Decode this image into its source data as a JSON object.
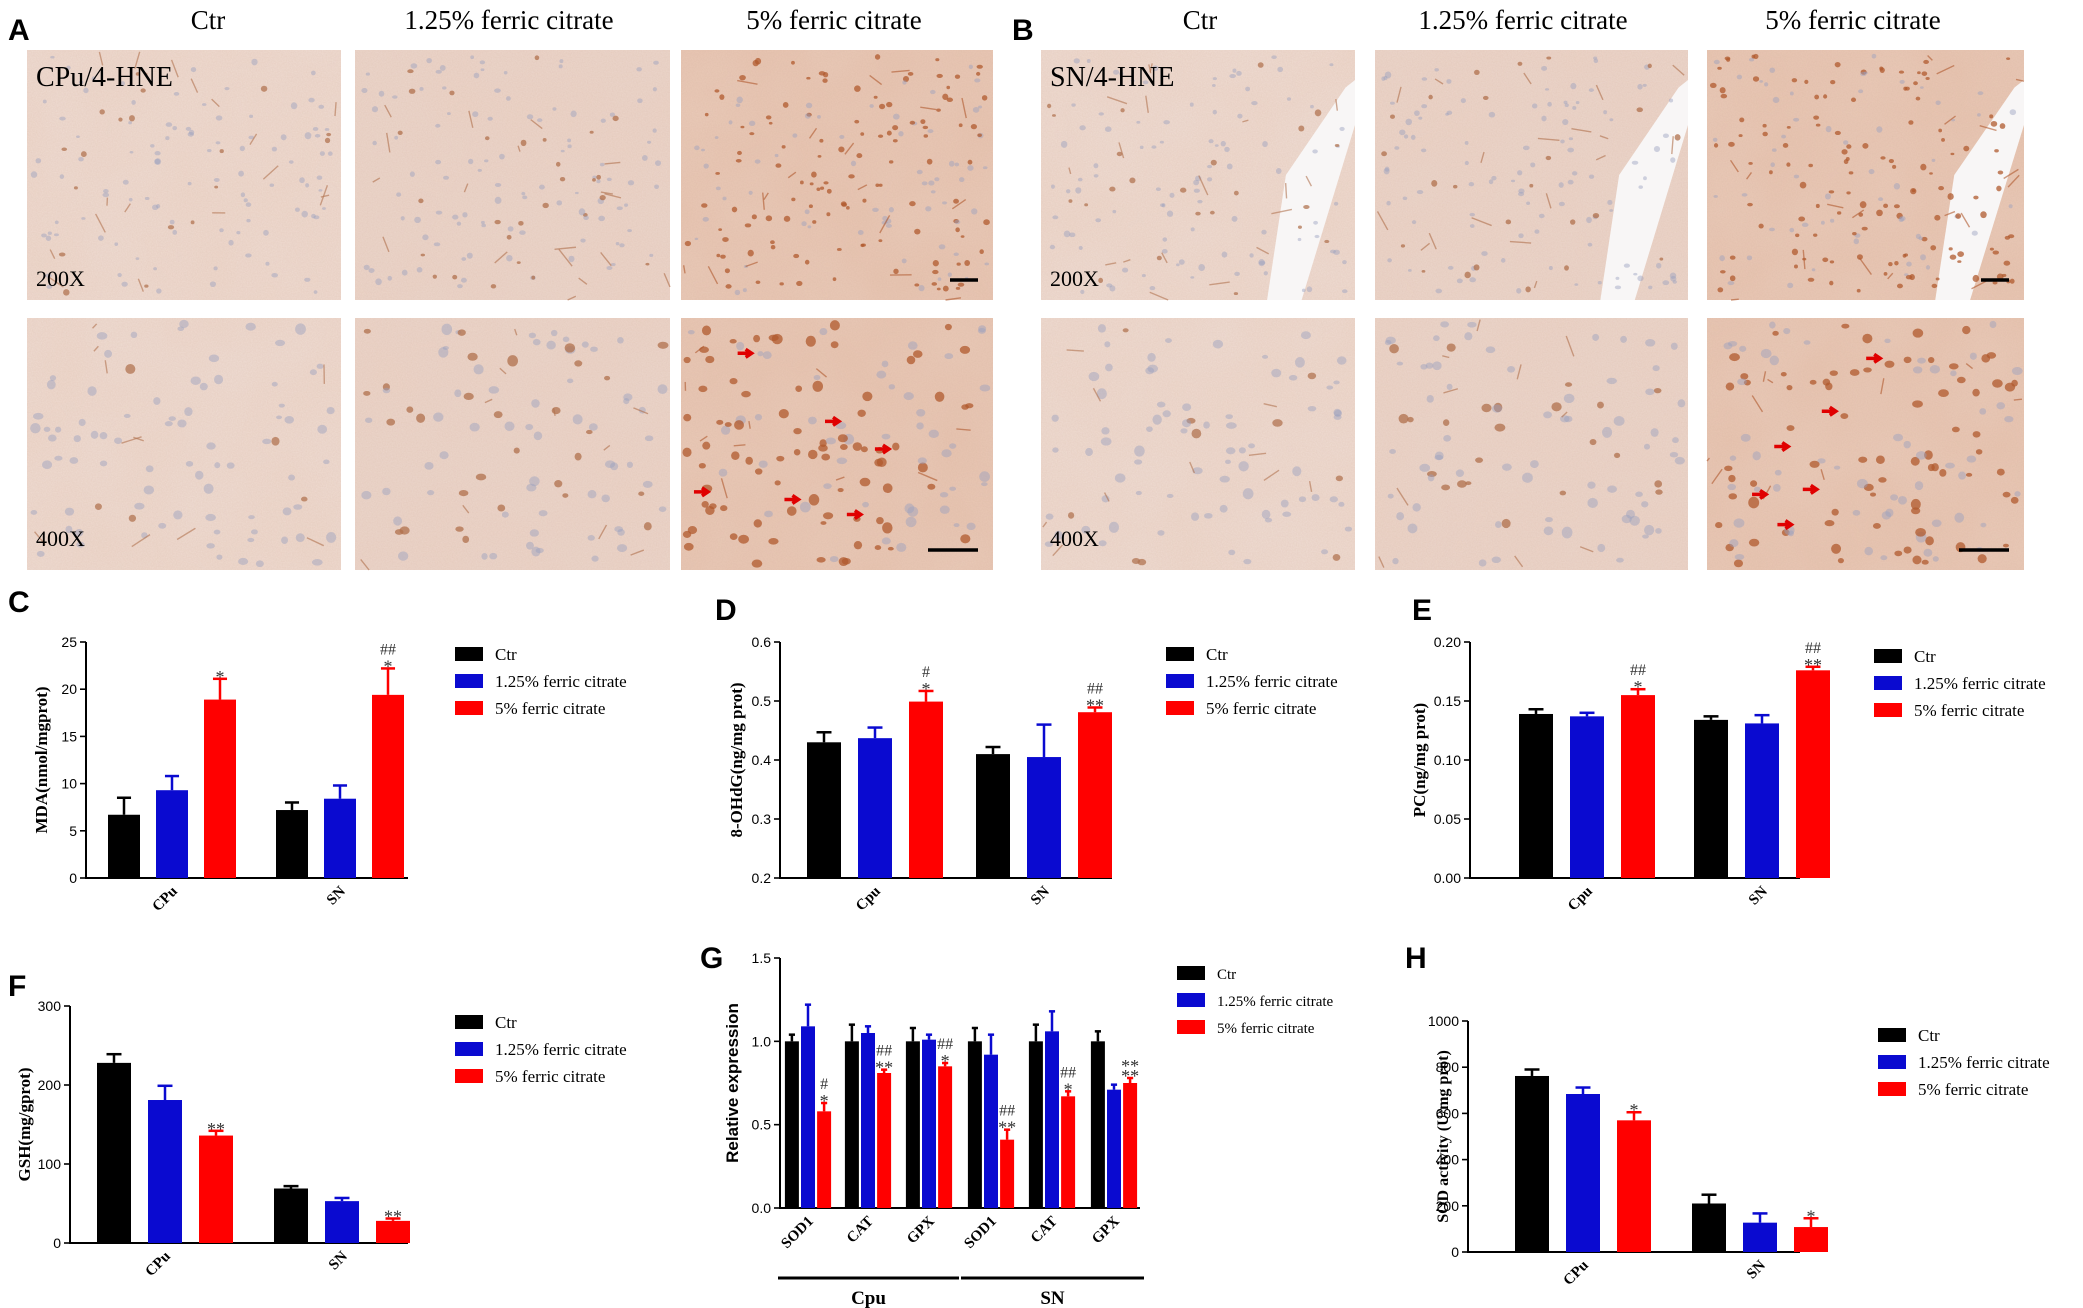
{
  "panels": {
    "A": {
      "letter": "A",
      "region_label": "CPu/4-HNE",
      "columns": [
        "Ctr",
        "1.25% ferric citrate",
        "5% ferric citrate"
      ],
      "mag_labels": [
        "200X",
        "400X"
      ]
    },
    "B": {
      "letter": "B",
      "region_label": "SN/4-HNE",
      "columns": [
        "Ctr",
        "1.25% ferric citrate",
        "5% ferric citrate"
      ],
      "mag_labels": [
        "200X",
        "400X"
      ]
    }
  },
  "legend_labels": [
    "Ctr",
    "1.25% ferric citrate",
    "5% ferric citrate"
  ],
  "colors": {
    "ctr": "#000000",
    "low": "#0a0ad0",
    "high": "#ff0000",
    "tissue": "#f0dcd4",
    "tissue_dark": "#e9c9b9",
    "stain": "#a8603a",
    "arrow": "#e00000"
  },
  "chart_data": [
    {
      "letter": "C",
      "type": "bar",
      "categories": [
        "CPu",
        "SN"
      ],
      "ylabel": "MDA(nmol/mgprot)",
      "ylim": [
        0,
        25
      ],
      "yticks": [
        "0",
        "5",
        "10",
        "15",
        "20",
        "25"
      ],
      "series": [
        {
          "name": "Ctr",
          "values": [
            6.7,
            7.2
          ],
          "errors": [
            1.8,
            0.8
          ]
        },
        {
          "name": "1.25% ferric citrate",
          "values": [
            9.3,
            8.4
          ],
          "errors": [
            1.5,
            1.4
          ]
        },
        {
          "name": "5% ferric citrate",
          "values": [
            18.9,
            19.4
          ],
          "errors": [
            2.2,
            2.8
          ]
        }
      ],
      "annotations": [
        [
          [
            "*"
          ],
          [
            "##",
            "*"
          ]
        ]
      ]
    },
    {
      "letter": "D",
      "type": "bar",
      "categories": [
        "Cpu",
        "SN"
      ],
      "ylabel": "8-OHdG(ng/mg prot)",
      "ylim": [
        0.2,
        0.6
      ],
      "yticks": [
        "0.2",
        "0.3",
        "0.4",
        "0.5",
        "0.6"
      ],
      "series": [
        {
          "name": "Ctr",
          "values": [
            0.43,
            0.41
          ],
          "errors": [
            0.017,
            0.012
          ]
        },
        {
          "name": "1.25% ferric citrate",
          "values": [
            0.437,
            0.405
          ],
          "errors": [
            0.018,
            0.055
          ]
        },
        {
          "name": "5% ferric citrate",
          "values": [
            0.499,
            0.481
          ],
          "errors": [
            0.018,
            0.008
          ]
        }
      ],
      "annotations": [
        [
          [
            "#",
            "*"
          ],
          [
            "##",
            "**"
          ]
        ]
      ]
    },
    {
      "letter": "E",
      "type": "bar",
      "categories": [
        "Cpu",
        "SN"
      ],
      "ylabel": "PC(ng/mg prot)",
      "ylim": [
        0,
        0.2
      ],
      "yticks": [
        "0.00",
        "0.05",
        "0.10",
        "0.15",
        "0.20"
      ],
      "series": [
        {
          "name": "Ctr",
          "values": [
            0.139,
            0.134
          ],
          "errors": [
            0.004,
            0.003
          ]
        },
        {
          "name": "1.25% ferric citrate",
          "values": [
            0.137,
            0.131
          ],
          "errors": [
            0.003,
            0.007
          ]
        },
        {
          "name": "5% ferric citrate",
          "values": [
            0.155,
            0.176
          ],
          "errors": [
            0.005,
            0.003
          ]
        }
      ],
      "annotations": [
        [
          [
            "##",
            "*"
          ],
          [
            "##",
            "**"
          ]
        ]
      ]
    },
    {
      "letter": "F",
      "type": "bar",
      "categories": [
        "CPu",
        "SN"
      ],
      "ylabel": "GSH(mg/gprot)",
      "ylim": [
        0,
        300
      ],
      "yticks": [
        "0",
        "100",
        "200",
        "300"
      ],
      "series": [
        {
          "name": "Ctr",
          "values": [
            228,
            69
          ],
          "errors": [
            11,
            3
          ]
        },
        {
          "name": "1.25% ferric citrate",
          "values": [
            181,
            53
          ],
          "errors": [
            18,
            4
          ]
        },
        {
          "name": "5% ferric citrate",
          "values": [
            136,
            28
          ],
          "errors": [
            6,
            3
          ]
        }
      ],
      "annotations": [
        [
          [
            "**"
          ],
          [
            "**"
          ]
        ]
      ]
    },
    {
      "letter": "G",
      "type": "bar",
      "categories": [
        "SOD1",
        "CAT",
        "GPX",
        "SOD1",
        "CAT",
        "GPX"
      ],
      "groups": [
        "Cpu",
        "SN"
      ],
      "ylabel": "Relative expression",
      "ylim": [
        0,
        1.5
      ],
      "yticks": [
        "0.0",
        "0.5",
        "1.0",
        "1.5"
      ],
      "series": [
        {
          "name": "Ctr",
          "values": [
            1.0,
            1.0,
            1.0,
            1.0,
            1.0,
            1.0
          ],
          "errors": [
            0.04,
            0.1,
            0.08,
            0.08,
            0.1,
            0.06
          ]
        },
        {
          "name": "1.25% ferric citrate",
          "values": [
            1.09,
            1.05,
            1.01,
            0.92,
            1.06,
            0.71
          ],
          "errors": [
            0.13,
            0.04,
            0.03,
            0.12,
            0.12,
            0.03
          ]
        },
        {
          "name": "5% ferric citrate",
          "values": [
            0.58,
            0.81,
            0.85,
            0.41,
            0.67,
            0.75
          ],
          "errors": [
            0.05,
            0.02,
            0.02,
            0.06,
            0.03,
            0.03
          ]
        }
      ],
      "annotations": [
        [
          [
            "#",
            "*"
          ],
          [
            "##",
            "**"
          ],
          [
            "##",
            "*"
          ],
          [
            "##",
            "**"
          ],
          [
            "##",
            "*"
          ],
          [
            "**",
            "**"
          ]
        ]
      ]
    },
    {
      "letter": "H",
      "type": "bar",
      "categories": [
        "CPu",
        "SN"
      ],
      "ylabel": "SOD activity (U/mg prot)",
      "ylim": [
        0,
        1000
      ],
      "yticks": [
        "0",
        "200",
        "400",
        "600",
        "800",
        "1000"
      ],
      "series": [
        {
          "name": "Ctr",
          "values": [
            762,
            210
          ],
          "errors": [
            28,
            38
          ]
        },
        {
          "name": "1.25% ferric citrate",
          "values": [
            684,
            127
          ],
          "errors": [
            28,
            40
          ]
        },
        {
          "name": "5% ferric citrate",
          "values": [
            570,
            108
          ],
          "errors": [
            35,
            38
          ]
        }
      ],
      "annotations": [
        [
          [
            "*"
          ],
          [
            "*"
          ]
        ]
      ]
    }
  ]
}
